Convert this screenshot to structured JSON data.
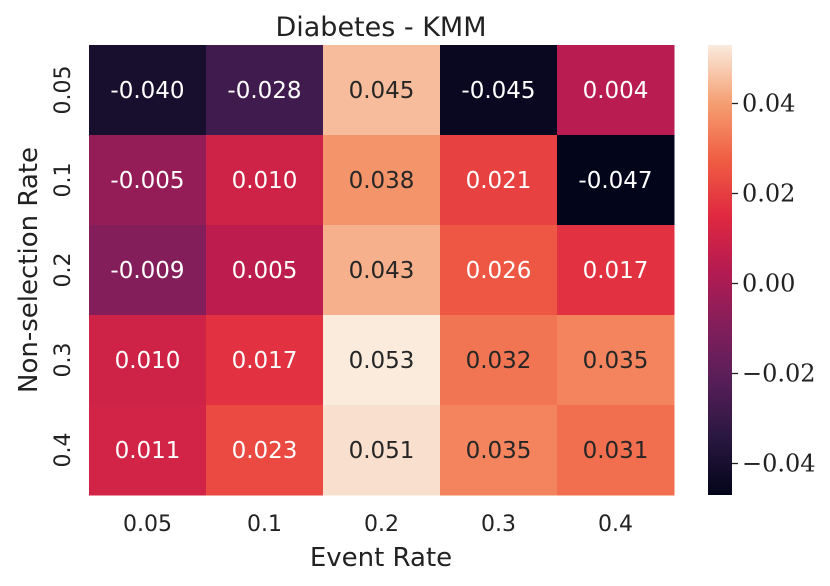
{
  "chart_data": {
    "type": "heatmap",
    "title": "Diabetes - KMM",
    "xlabel": "Event Rate",
    "ylabel": "Non-selection Rate",
    "x_categories": [
      "0.05",
      "0.1",
      "0.2",
      "0.3",
      "0.4"
    ],
    "y_categories": [
      "0.05",
      "0.1",
      "0.2",
      "0.3",
      "0.4"
    ],
    "values": [
      [
        -0.04,
        -0.028,
        0.045,
        -0.045,
        0.004
      ],
      [
        -0.005,
        0.01,
        0.038,
        0.021,
        -0.047
      ],
      [
        -0.009,
        0.005,
        0.043,
        0.026,
        0.017
      ],
      [
        0.01,
        0.017,
        0.053,
        0.032,
        0.035
      ],
      [
        0.011,
        0.023,
        0.051,
        0.035,
        0.031
      ]
    ],
    "value_labels": [
      [
        "-0.040",
        "-0.028",
        "0.045",
        "-0.045",
        "0.004"
      ],
      [
        "-0.005",
        "0.010",
        "0.038",
        "0.021",
        "-0.047"
      ],
      [
        "-0.009",
        "0.005",
        "0.043",
        "0.026",
        "0.017"
      ],
      [
        "0.010",
        "0.017",
        "0.053",
        "0.032",
        "0.035"
      ],
      [
        "0.011",
        "0.023",
        "0.051",
        "0.035",
        "0.031"
      ]
    ],
    "colorbar": {
      "range": [
        -0.047,
        0.053
      ],
      "ticks": [
        -0.04,
        -0.02,
        0.0,
        0.02,
        0.04
      ],
      "tick_labels": [
        "−0.04",
        "−0.02",
        "0.00",
        "0.02",
        "0.04"
      ],
      "colormap": "rocket"
    }
  }
}
